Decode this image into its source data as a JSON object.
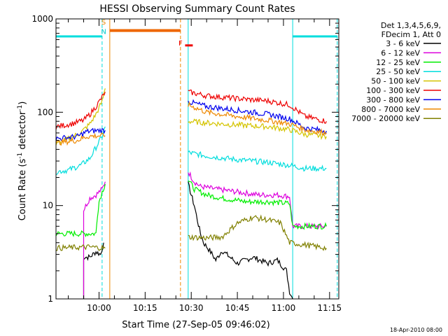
{
  "chart_data": {
    "type": "line",
    "title": "HESSI Observing Summary Count Rates",
    "xlabel": "Start Time (27-Sep-05 09:46:02)",
    "ylabel_main": "Count Rate (s",
    "ylabel_sup1": "-1",
    "ylabel_mid": " detector",
    "ylabel_sup2": "-1",
    "ylabel_end": ")",
    "y_scale": "log",
    "ylim": [
      1,
      1000
    ],
    "xlim_minutes": [
      -14,
      78
    ],
    "x_ticks": [
      {
        "minute": 0,
        "label": "10:00"
      },
      {
        "minute": 15,
        "label": "10:15"
      },
      {
        "minute": 30,
        "label": "10:30"
      },
      {
        "minute": 45,
        "label": "10:45"
      },
      {
        "minute": 60,
        "label": "11:00"
      },
      {
        "minute": 75,
        "label": "11:15"
      }
    ],
    "y_ticks": [
      {
        "value": 1,
        "label": "1"
      },
      {
        "value": 10,
        "label": "10"
      },
      {
        "value": 100,
        "label": "100"
      },
      {
        "value": 1000,
        "label": "1000"
      }
    ],
    "legend_header": [
      "Det 1,3,4,5,6,9,",
      "FDecim 1, Att 0"
    ],
    "series": [
      {
        "name": "3 - 6 keV",
        "color": "#000000",
        "segments": [
          [
            [
              -5,
              1
            ],
            [
              -5,
              2.8
            ],
            [
              -3,
              2.8
            ],
            [
              -1,
              3.2
            ],
            [
              0.5,
              3
            ],
            [
              1.5,
              4
            ]
          ],
          [
            [
              29,
              17
            ],
            [
              30,
              13
            ],
            [
              31,
              10
            ],
            [
              32,
              7
            ],
            [
              33,
              5
            ],
            [
              34,
              4
            ],
            [
              36,
              3.3
            ],
            [
              38,
              2.6
            ],
            [
              40,
              3.3
            ],
            [
              45,
              2.4
            ],
            [
              50,
              2.8
            ],
            [
              55,
              2.4
            ],
            [
              58,
              2.6
            ],
            [
              61,
              2
            ],
            [
              62,
              1.2
            ],
            [
              63,
              1
            ]
          ]
        ]
      },
      {
        "name": "6 - 12 keV",
        "color": "#dd00dd",
        "segments": [
          [
            [
              -5,
              1
            ],
            [
              -5,
              9
            ],
            [
              -3,
              12
            ],
            [
              -1,
              13
            ],
            [
              1,
              15
            ],
            [
              2,
              18
            ]
          ],
          [
            [
              29,
              23
            ],
            [
              31,
              18
            ],
            [
              33,
              16
            ],
            [
              38,
              15
            ],
            [
              45,
              14
            ],
            [
              52,
              13
            ],
            [
              58,
              13
            ],
            [
              62,
              12.5
            ],
            [
              63,
              6
            ],
            [
              74,
              6
            ]
          ]
        ]
      },
      {
        "name": "12 - 25 keV",
        "color": "#00ee00",
        "segments": [
          [
            [
              -14,
              5
            ],
            [
              -1,
              5
            ],
            [
              -0.5,
              8
            ],
            [
              0,
              11
            ],
            [
              1,
              14
            ],
            [
              2,
              17
            ]
          ],
          [
            [
              29,
              19
            ],
            [
              31,
              15
            ],
            [
              35,
              13
            ],
            [
              40,
              12
            ],
            [
              48,
              11
            ],
            [
              55,
              11
            ],
            [
              62,
              10.5
            ],
            [
              63,
              6
            ],
            [
              74,
              6
            ]
          ]
        ]
      },
      {
        "name": "25 - 50 keV",
        "color": "#00dddd",
        "segments": [
          [
            [
              -14,
              23
            ],
            [
              -10,
              24
            ],
            [
              -6,
              27
            ],
            [
              -3,
              32
            ],
            [
              -1,
              42
            ],
            [
              1,
              55
            ],
            [
              2,
              70
            ]
          ],
          [
            [
              29,
              37
            ],
            [
              35,
              34
            ],
            [
              45,
              31
            ],
            [
              55,
              29
            ],
            [
              62,
              27
            ],
            [
              67,
              25
            ],
            [
              74,
              25
            ]
          ]
        ]
      },
      {
        "name": "50 - 100 keV",
        "color": "#d4c400",
        "segments": [
          [
            [
              -14,
              45
            ],
            [
              -10,
              52
            ],
            [
              -6,
              60
            ],
            [
              -3,
              75
            ],
            [
              -1,
              95
            ],
            [
              1,
              130
            ],
            [
              2,
              180
            ]
          ],
          [
            [
              29,
              80
            ],
            [
              35,
              77
            ],
            [
              45,
              73
            ],
            [
              55,
              70
            ],
            [
              62,
              65
            ],
            [
              67,
              58
            ],
            [
              74,
              55
            ]
          ]
        ]
      },
      {
        "name": "100 - 300 keV",
        "color": "#ee0000",
        "segments": [
          [
            [
              -14,
              70
            ],
            [
              -9,
              75
            ],
            [
              -5,
              82
            ],
            [
              -3,
              95
            ],
            [
              -1,
              115
            ],
            [
              1,
              145
            ],
            [
              2,
              165
            ]
          ],
          [
            [
              29,
              165
            ],
            [
              35,
              150
            ],
            [
              45,
              140
            ],
            [
              55,
              132
            ],
            [
              62,
              120
            ],
            [
              67,
              90
            ],
            [
              74,
              80
            ]
          ]
        ]
      },
      {
        "name": "300 - 800 keV",
        "color": "#0000ee",
        "segments": [
          [
            [
              -14,
              52
            ],
            [
              -7,
              55
            ],
            [
              -4,
              62
            ],
            [
              0,
              64
            ],
            [
              2,
              64
            ]
          ],
          [
            [
              29,
              130
            ],
            [
              35,
              115
            ],
            [
              45,
              105
            ],
            [
              55,
              95
            ],
            [
              62,
              85
            ],
            [
              67,
              68
            ],
            [
              74,
              63
            ]
          ]
        ]
      },
      {
        "name": "800 - 7000 keV",
        "color": "#ee8800",
        "segments": [
          [
            [
              -14,
              47
            ],
            [
              -7,
              50
            ],
            [
              -4,
              55
            ],
            [
              0,
              56
            ],
            [
              2,
              56
            ]
          ],
          [
            [
              29,
              120
            ],
            [
              35,
              100
            ],
            [
              45,
              90
            ],
            [
              55,
              82
            ],
            [
              62,
              75
            ],
            [
              67,
              65
            ],
            [
              74,
              60
            ]
          ]
        ]
      },
      {
        "name": "7000 - 20000 keV",
        "color": "#808000",
        "segments": [
          [
            [
              -14,
              3.5
            ],
            [
              -3,
              3.6
            ],
            [
              2,
              3.5
            ]
          ],
          [
            [
              29,
              4.6
            ],
            [
              35,
              4.5
            ],
            [
              40,
              4.6
            ],
            [
              45,
              6.5
            ],
            [
              50,
              7.5
            ],
            [
              55,
              7
            ],
            [
              59,
              6.5
            ],
            [
              62,
              4
            ],
            [
              74,
              3.5
            ]
          ]
        ]
      }
    ],
    "attenuator_bar": [
      {
        "minute_start": 3.5,
        "minute_end": 26.5,
        "value": 750,
        "color": "#ee6600"
      }
    ],
    "flag_bar": [
      {
        "minute_start": 28,
        "minute_end": 30.5,
        "value": 520,
        "color": "#ee0000"
      }
    ],
    "vertical_markers": [
      {
        "minute": -14,
        "style": "solid",
        "color": "#00dddd"
      },
      {
        "minute": 1,
        "style": "dashed",
        "color": "#00dddd"
      },
      {
        "minute": 3.5,
        "style": "solid",
        "color": "#ee8800"
      },
      {
        "minute": 26.5,
        "style": "dashed",
        "color": "#ee8800"
      },
      {
        "minute": 29,
        "style": "solid",
        "color": "#00dddd"
      },
      {
        "minute": 63,
        "style": "solid",
        "color": "#00dddd"
      },
      {
        "minute": 77.5,
        "style": "dashed",
        "color": "#00dddd"
      }
    ],
    "night_bars": [
      {
        "minute_start": -14,
        "minute_end": 1,
        "value": 650,
        "color": "#00dddd"
      },
      {
        "minute_start": 63,
        "minute_end": 77.5,
        "value": 650,
        "color": "#00dddd"
      }
    ],
    "annotations": [
      {
        "text": "S",
        "minute": 1.5,
        "value": 870,
        "color": "#ee8800"
      },
      {
        "text": "N",
        "minute": 1.5,
        "value": 690,
        "color": "#00cccc"
      },
      {
        "text": "F",
        "minute": 26.5,
        "value": 520,
        "color": "#ee0000"
      }
    ],
    "footer": "18-Apr-2010 08:00"
  }
}
